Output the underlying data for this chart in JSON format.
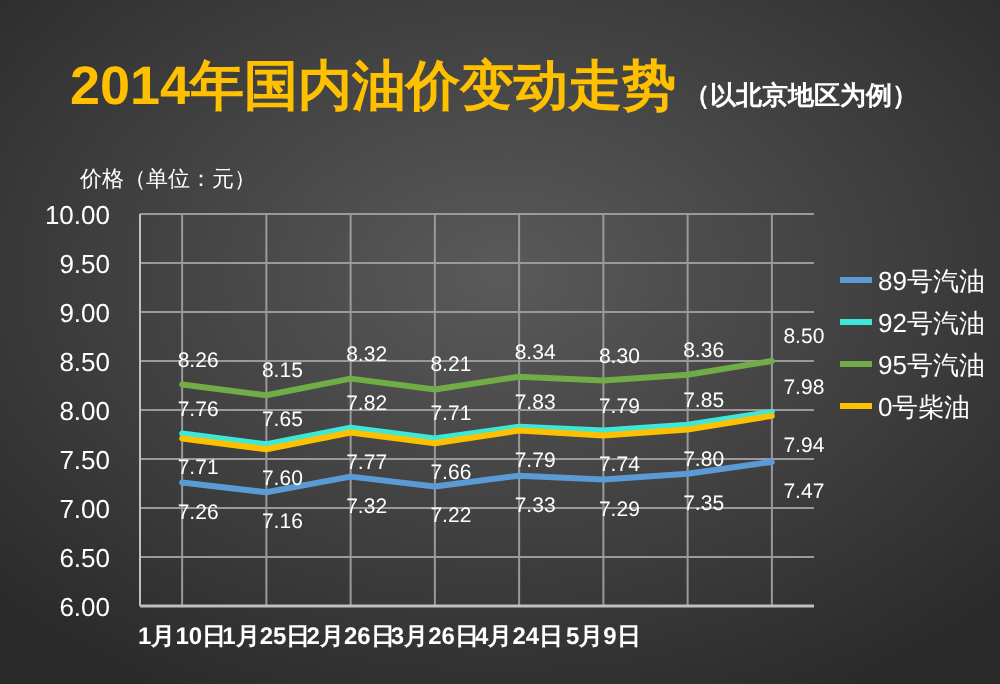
{
  "chart_data": {
    "type": "line",
    "title": "2014年国内油价变动走势",
    "subtitle": "（以北京地区为例）",
    "ylabel": "价格（单位：元）",
    "categories": [
      "1月10日",
      "1月25日",
      "2月26日",
      "3月26日",
      "4月24日",
      "5月9日",
      null,
      null
    ],
    "series": [
      {
        "name": "89号汽油",
        "color": "#5b9bd5",
        "values": [
          7.26,
          7.16,
          7.32,
          7.22,
          7.33,
          7.29,
          7.35,
          7.47
        ],
        "value_labels": [
          "7.26",
          "7.16",
          "7.32",
          "7.22",
          "7.33",
          "7.29",
          "7.35",
          "7.47"
        ]
      },
      {
        "name": "92号汽油",
        "color": "#3ee8d8",
        "values": [
          7.76,
          7.65,
          7.82,
          7.71,
          7.83,
          7.79,
          7.85,
          7.98
        ],
        "value_labels": [
          "7.76",
          "7.65",
          "7.82",
          "7.71",
          "7.83",
          "7.79",
          "7.85",
          "7.98"
        ]
      },
      {
        "name": "95号汽油",
        "color": "#70ad47",
        "values": [
          8.26,
          8.15,
          8.32,
          8.21,
          8.34,
          8.3,
          8.36,
          8.5
        ],
        "value_labels": [
          "8.26",
          "8.15",
          "8.32",
          "8.21",
          "8.34",
          "8.30",
          "8.36",
          "8.50"
        ]
      },
      {
        "name": "0号柴油",
        "color": "#ffc000",
        "values": [
          7.71,
          7.6,
          7.77,
          7.66,
          7.79,
          7.74,
          7.8,
          7.94
        ],
        "value_labels": [
          "7.71",
          "7.60",
          "7.77",
          "7.66",
          "7.79",
          "7.74",
          "7.80",
          "7.94"
        ]
      }
    ],
    "ylim": [
      6,
      10
    ],
    "yticks": [
      {
        "value": 6,
        "label": "6.00"
      },
      {
        "value": 6.5,
        "label": "6.50"
      },
      {
        "value": 7,
        "label": "7.00"
      },
      {
        "value": 7.5,
        "label": "7.50"
      },
      {
        "value": 8,
        "label": "8.00"
      },
      {
        "value": 8.5,
        "label": "8.50"
      },
      {
        "value": 9,
        "label": "9.00"
      },
      {
        "value": 9.5,
        "label": "9.50"
      },
      {
        "value": 10,
        "label": "10.00"
      }
    ],
    "grid": true,
    "legend": "right"
  }
}
